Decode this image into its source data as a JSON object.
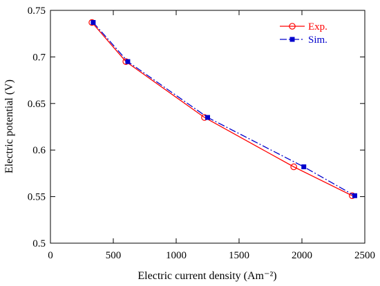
{
  "chart_data": {
    "type": "line",
    "xlabel": "Electric current density (Am⁻²)",
    "ylabel": "Electric potential (V)",
    "xlim": [
      0,
      2500
    ],
    "ylim": [
      0.5,
      0.75
    ],
    "xticks": [
      0,
      500,
      1000,
      1500,
      2000,
      2500
    ],
    "yticks": [
      0.5,
      0.55,
      0.6,
      0.65,
      0.7,
      0.75
    ],
    "xtick_labels": [
      "0",
      "500",
      "1000",
      "1500",
      "2000",
      "2500"
    ],
    "ytick_labels": [
      "0.5",
      "0.55",
      "0.6",
      "0.65",
      "0.7",
      "0.75"
    ],
    "grid": false,
    "legend_position": "top-right",
    "series": [
      {
        "name": "Exp.",
        "color": "#ff0000",
        "marker": "open-circle",
        "line_style": "solid",
        "x": [
          330,
          600,
          1225,
          1935,
          2400
        ],
        "y": [
          0.737,
          0.695,
          0.635,
          0.582,
          0.551
        ]
      },
      {
        "name": "Sim.",
        "color": "#0000cc",
        "marker": "filled-square",
        "line_style": "dash-dot",
        "x": [
          340,
          615,
          1250,
          2015,
          2420
        ],
        "y": [
          0.737,
          0.695,
          0.635,
          0.582,
          0.551
        ]
      }
    ]
  }
}
